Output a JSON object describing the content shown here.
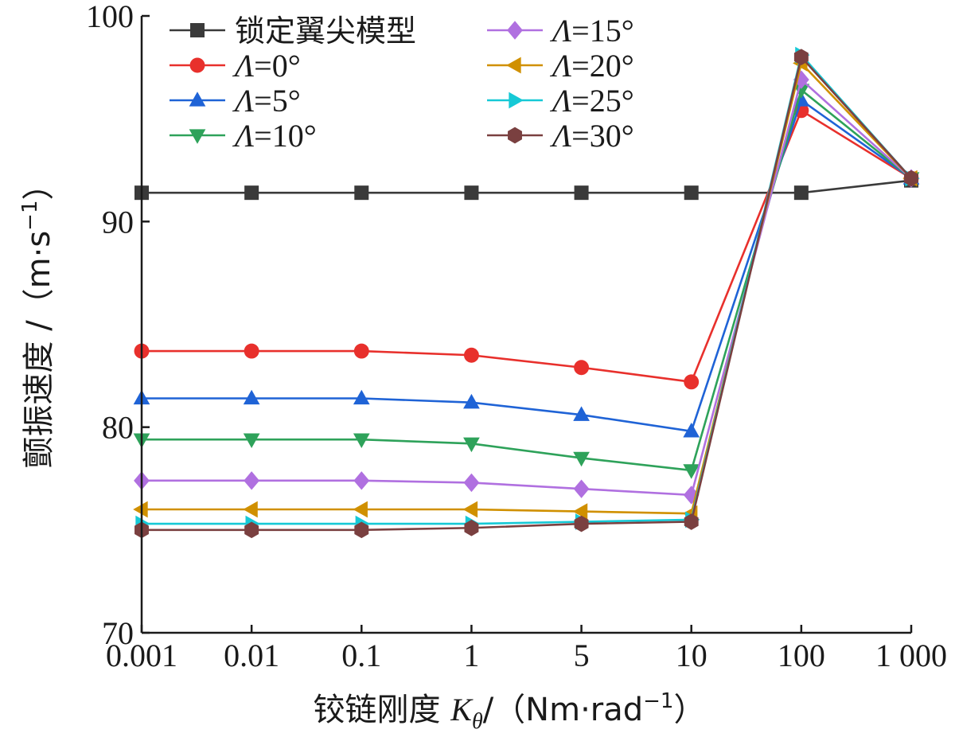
{
  "chart_data": {
    "type": "line",
    "xlabel_main": "铰链刚度 ",
    "xlabel_var": "K",
    "xlabel_sub": "θ",
    "xlabel_unit": "/（Nm·rad",
    "xlabel_exp": "−1",
    "xlabel_close": "）",
    "ylabel_main": "颤振速度 /（m·s",
    "ylabel_exp": "−1",
    "ylabel_close": "）",
    "categories": [
      "0.001",
      "0.01",
      "0.1",
      "1",
      "5",
      "10",
      "100",
      "1 000"
    ],
    "ylim": [
      70,
      100
    ],
    "yticks": [
      70,
      80,
      90,
      100
    ],
    "grid": false,
    "legend_position": "top",
    "series": [
      {
        "name": "锁定翼尖模型",
        "color": "#3a3a3a",
        "marker": "square",
        "values": [
          91.4,
          91.4,
          91.4,
          91.4,
          91.4,
          91.4,
          91.4,
          92.0
        ]
      },
      {
        "name": "Λ=0°",
        "color": "#e8302c",
        "marker": "circle",
        "values": [
          83.7,
          83.7,
          83.7,
          83.5,
          82.9,
          82.2,
          95.4,
          92.1
        ]
      },
      {
        "name": "Λ=5°",
        "color": "#1f63d6",
        "marker": "triangle-up",
        "values": [
          81.4,
          81.4,
          81.4,
          81.2,
          80.6,
          79.8,
          95.9,
          92.1
        ]
      },
      {
        "name": "Λ=10°",
        "color": "#2ea25a",
        "marker": "triangle-down",
        "values": [
          79.4,
          79.4,
          79.4,
          79.2,
          78.5,
          77.9,
          96.4,
          92.1
        ]
      },
      {
        "name": "Λ=15°",
        "color": "#b070e0",
        "marker": "diamond",
        "values": [
          77.4,
          77.4,
          77.4,
          77.3,
          77.0,
          76.7,
          96.9,
          92.1
        ]
      },
      {
        "name": "Λ=20°",
        "color": "#d09000",
        "marker": "triangle-left",
        "values": [
          76.0,
          76.0,
          76.0,
          76.0,
          75.9,
          75.8,
          97.7,
          92.1
        ]
      },
      {
        "name": "Λ=25°",
        "color": "#16c9d6",
        "marker": "triangle-right",
        "values": [
          75.3,
          75.3,
          75.3,
          75.3,
          75.4,
          75.5,
          98.1,
          92.1
        ]
      },
      {
        "name": "Λ=30°",
        "color": "#7a4040",
        "marker": "hexagon",
        "values": [
          75.0,
          75.0,
          75.0,
          75.1,
          75.3,
          75.4,
          98.0,
          92.1
        ]
      }
    ]
  }
}
